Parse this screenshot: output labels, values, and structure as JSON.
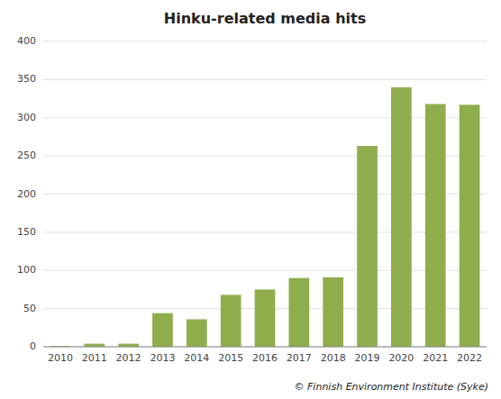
{
  "chart_data": {
    "type": "bar",
    "title": "Hinku-related media hits",
    "categories": [
      "2010",
      "2011",
      "2012",
      "2013",
      "2014",
      "2015",
      "2016",
      "2017",
      "2018",
      "2019",
      "2020",
      "2021",
      "2022"
    ],
    "values": [
      1,
      4,
      4,
      44,
      36,
      68,
      75,
      90,
      91,
      263,
      340,
      318,
      317
    ],
    "color": "#8fad4b",
    "ylim": [
      0,
      400
    ],
    "yticks": [
      0,
      50,
      100,
      150,
      200,
      250,
      300,
      350,
      400
    ],
    "grid": true,
    "caption": "© Finnish Environment Institute (Syke)"
  }
}
